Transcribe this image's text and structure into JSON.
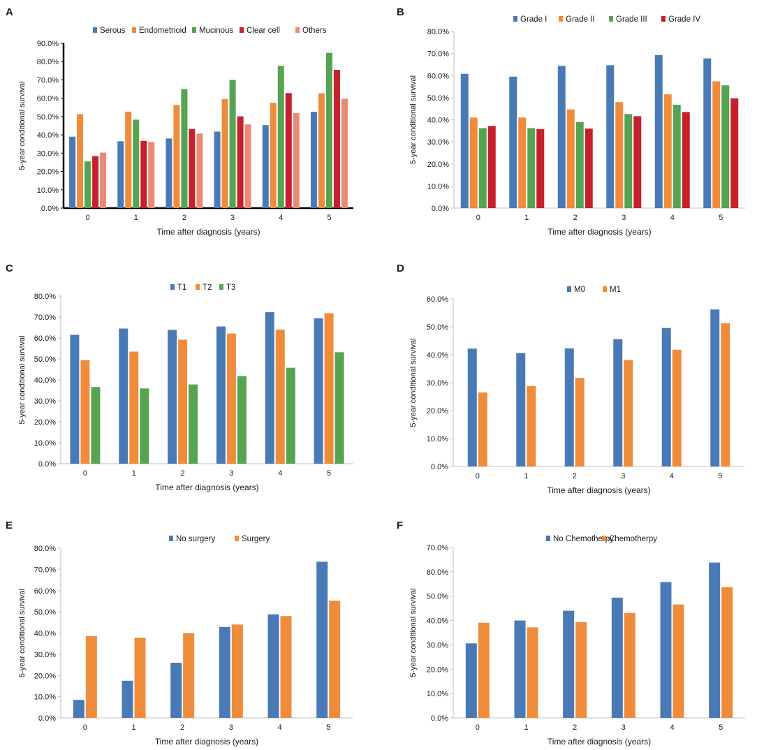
{
  "figure": {
    "x_label": "Time after diagnosis (years)",
    "y_label": "5-year conditional survival",
    "colors": {
      "blue": "#4a7ab5",
      "orange": "#ef8c3c",
      "green": "#56a351",
      "red": "#c5202c",
      "salmon": "#e98a76",
      "axis": "#bfbfbf",
      "axis_dark": "#000000",
      "text": "#1a1a1a"
    }
  },
  "chart_data": [
    {
      "panel": "A",
      "type": "bar",
      "title": "",
      "xlabel": "Time after diagnosis (years)",
      "ylabel": "5-year conditional survival",
      "categories": [
        "0",
        "1",
        "2",
        "3",
        "4",
        "5"
      ],
      "ylim": [
        0,
        90
      ],
      "yticks": [
        "0.0%",
        "10.0%",
        "20.0%",
        "30.0%",
        "40.0%",
        "50.0%",
        "60.0%",
        "70.0%",
        "80.0%",
        "90.0%"
      ],
      "legend_position": "top-center",
      "series": [
        {
          "name": "Serous",
          "color": "#4a7ab5",
          "values": [
            39.0,
            36.5,
            38.0,
            41.8,
            45.3,
            52.6
          ]
        },
        {
          "name": "Endometrioid",
          "color": "#ef8c3c",
          "values": [
            51.3,
            52.7,
            56.3,
            59.6,
            57.5,
            62.7
          ]
        },
        {
          "name": "Mucinous",
          "color": "#56a351",
          "values": [
            25.5,
            48.3,
            65.0,
            70.0,
            77.7,
            84.8
          ]
        },
        {
          "name": "Clear cell",
          "color": "#c5202c",
          "values": [
            28.4,
            36.7,
            43.2,
            50.1,
            62.8,
            75.5
          ]
        },
        {
          "name": "Others",
          "color": "#e98a76",
          "values": [
            30.3,
            36.1,
            40.7,
            45.7,
            51.9,
            59.7
          ]
        }
      ]
    },
    {
      "panel": "B",
      "type": "bar",
      "title": "",
      "xlabel": "Time after diagnosis (years)",
      "ylabel": "5-year conditional survival",
      "categories": [
        "0",
        "1",
        "2",
        "3",
        "4",
        "5"
      ],
      "ylim": [
        0,
        80
      ],
      "yticks": [
        "0.0%",
        "10.0%",
        "20.0%",
        "30.0%",
        "40.0%",
        "50.0%",
        "60.0%",
        "70.0%",
        "80.0%"
      ],
      "legend_position": "top-center",
      "series": [
        {
          "name": "Grade I",
          "color": "#4a7ab5",
          "values": [
            60.8,
            59.5,
            64.4,
            64.7,
            69.3,
            67.8
          ]
        },
        {
          "name": "Grade II",
          "color": "#ef8c3c",
          "values": [
            41.0,
            41.0,
            44.7,
            48.0,
            51.5,
            57.4
          ]
        },
        {
          "name": "Grade III",
          "color": "#56a351",
          "values": [
            36.2,
            36.2,
            39.0,
            42.6,
            46.8,
            55.6
          ]
        },
        {
          "name": "Grade IV",
          "color": "#c5202c",
          "values": [
            37.2,
            35.8,
            36.0,
            41.6,
            43.5,
            49.7
          ]
        }
      ]
    },
    {
      "panel": "C",
      "type": "bar",
      "title": "",
      "xlabel": "Time after diagnosis (years)",
      "ylabel": "5-year conditional survival",
      "categories": [
        "0",
        "1",
        "2",
        "3",
        "4",
        "5"
      ],
      "ylim": [
        0,
        80
      ],
      "yticks": [
        "0.0%",
        "10.0%",
        "20.0%",
        "30.0%",
        "40.0%",
        "50.0%",
        "60.0%",
        "70.0%",
        "80.0%"
      ],
      "legend_position": "top-center",
      "series": [
        {
          "name": "T1",
          "color": "#4a7ab5",
          "values": [
            61.5,
            64.5,
            63.9,
            65.5,
            72.3,
            69.4
          ]
        },
        {
          "name": "T2",
          "color": "#ef8c3c",
          "values": [
            49.4,
            53.5,
            59.2,
            62.1,
            64.0,
            71.8
          ]
        },
        {
          "name": "T3",
          "color": "#56a351",
          "values": [
            36.6,
            35.9,
            37.8,
            41.8,
            45.8,
            53.2
          ]
        }
      ]
    },
    {
      "panel": "D",
      "type": "bar",
      "title": "",
      "xlabel": "Time after diagnosis (years)",
      "ylabel": "5-year conditional survival",
      "categories": [
        "0",
        "1",
        "2",
        "3",
        "4",
        "5"
      ],
      "ylim": [
        0,
        60
      ],
      "yticks": [
        "0.0%",
        "10.0%",
        "20.0%",
        "30.0%",
        "40.0%",
        "50.0%",
        "60.0%"
      ],
      "legend_position": "top-center",
      "series": [
        {
          "name": "M0",
          "color": "#4a7ab5",
          "values": [
            42.2,
            40.6,
            42.3,
            45.6,
            49.6,
            56.2
          ]
        },
        {
          "name": "M1",
          "color": "#ef8c3c",
          "values": [
            26.5,
            28.8,
            31.7,
            38.1,
            41.8,
            51.3
          ]
        }
      ]
    },
    {
      "panel": "E",
      "type": "bar",
      "title": "",
      "xlabel": "Time after diagnosis (years)",
      "ylabel": "5-year conditional survival",
      "categories": [
        "0",
        "1",
        "2",
        "3",
        "4",
        "5"
      ],
      "ylim": [
        0,
        80
      ],
      "yticks": [
        "0.0%",
        "10.0%",
        "20.0%",
        "30.0%",
        "40.0%",
        "50.0%",
        "60.0%",
        "70.0%",
        "80.0%"
      ],
      "legend_position": "top-center",
      "series": [
        {
          "name": "No surgery",
          "color": "#4a7ab5",
          "values": [
            8.5,
            17.5,
            26.0,
            42.9,
            48.8,
            73.6
          ]
        },
        {
          "name": "Surgery",
          "color": "#ef8c3c",
          "values": [
            38.5,
            37.8,
            40.0,
            44.0,
            48.0,
            55.2
          ]
        }
      ]
    },
    {
      "panel": "F",
      "type": "bar",
      "title": "",
      "xlabel": "Time after diagnosis (years)",
      "ylabel": "5-year conditional survival",
      "categories": [
        "0",
        "1",
        "2",
        "3",
        "4",
        "5"
      ],
      "ylim": [
        0,
        70
      ],
      "yticks": [
        "0.0%",
        "10.0%",
        "20.0%",
        "30.0%",
        "40.0%",
        "50.0%",
        "60.0%",
        "70.0%"
      ],
      "legend_position": "top-center",
      "series": [
        {
          "name": "No Chemotherpy",
          "color": "#4a7ab5",
          "values": [
            30.6,
            40.0,
            44.0,
            49.4,
            55.8,
            63.8
          ]
        },
        {
          "name": "Chemotherpy",
          "color": "#ef8c3c",
          "values": [
            39.1,
            37.2,
            39.3,
            43.1,
            46.6,
            53.7
          ]
        }
      ]
    }
  ]
}
